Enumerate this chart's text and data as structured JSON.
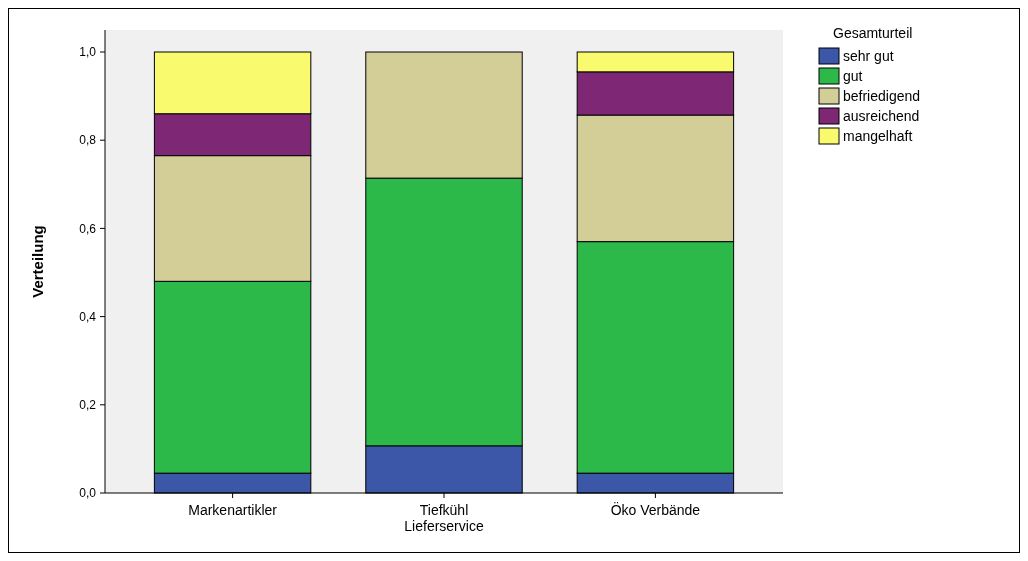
{
  "chart_data": {
    "type": "bar",
    "stacked": true,
    "ylabel": "Verteilung",
    "legend_title": "Gesamturteil",
    "legend": "right",
    "categories": [
      "Markenartikler",
      "Tiefkühl Lieferservice",
      "Öko Verbände"
    ],
    "series": [
      {
        "name": "sehr gut",
        "color": "#3c56a8",
        "values": [
          0.045,
          0.107,
          0.045
        ]
      },
      {
        "name": "gut",
        "color": "#2db84a",
        "values": [
          0.435,
          0.607,
          0.525
        ]
      },
      {
        "name": "befriedigend",
        "color": "#d3cd98",
        "values": [
          0.285,
          0.286,
          0.287
        ]
      },
      {
        "name": "ausreichend",
        "color": "#7d2775",
        "values": [
          0.095,
          null,
          0.098
        ]
      },
      {
        "name": "mangelhaft",
        "color": "#fafa6e",
        "values": [
          0.14,
          null,
          0.045
        ]
      }
    ],
    "ylim": [
      0,
      1
    ],
    "yticks": [
      {
        "value": 0,
        "label": "0,0"
      },
      {
        "value": 0.2,
        "label": "0,2"
      },
      {
        "value": 0.4,
        "label": "0,4"
      },
      {
        "value": 0.6,
        "label": "0,6"
      },
      {
        "value": 0.8,
        "label": "0,8"
      },
      {
        "value": 1,
        "label": "1,0"
      }
    ]
  }
}
